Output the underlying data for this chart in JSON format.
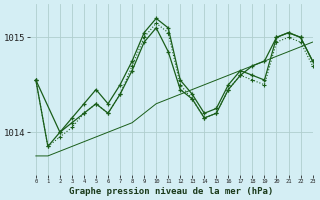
{
  "title": "Graphe pression niveau de la mer (hPa)",
  "background_color": "#d4eef4",
  "grid_color": "#b0cece",
  "line_color": "#1a5e1a",
  "xlim": [
    -0.5,
    23
  ],
  "ylim": [
    1013.55,
    1015.35
  ],
  "yticks": [
    1014,
    1015
  ],
  "xticks": [
    0,
    1,
    2,
    3,
    4,
    5,
    6,
    7,
    8,
    9,
    10,
    11,
    12,
    13,
    14,
    15,
    16,
    17,
    18,
    19,
    20,
    21,
    22,
    23
  ],
  "series": [
    {
      "x": [
        0,
        1,
        2,
        3,
        4,
        5,
        6,
        7,
        8,
        9,
        10,
        11,
        12,
        13,
        14,
        15,
        16,
        17,
        18,
        19,
        20,
        21,
        22,
        23
      ],
      "y": [
        1014.55,
        1013.85,
        1014.0,
        1014.15,
        1014.3,
        1014.45,
        1014.3,
        1014.5,
        1014.75,
        1015.05,
        1015.2,
        1015.1,
        1014.55,
        1014.4,
        1014.2,
        1014.25,
        1014.5,
        1014.65,
        1014.6,
        1014.55,
        1015.0,
        1015.05,
        1015.0,
        1014.75
      ],
      "linestyle": "-",
      "marker": "+"
    },
    {
      "x": [
        0,
        1,
        2,
        3,
        4,
        5,
        6,
        7,
        8,
        9,
        10,
        11,
        12,
        13,
        14,
        15,
        16,
        17,
        18,
        19,
        20,
        21,
        22,
        23
      ],
      "y": [
        1014.55,
        1013.85,
        1013.95,
        1014.05,
        1014.2,
        1014.3,
        1014.2,
        1014.4,
        1014.7,
        1015.0,
        1015.15,
        1015.05,
        1014.5,
        1014.35,
        1014.15,
        1014.2,
        1014.45,
        1014.6,
        1014.55,
        1014.5,
        1014.95,
        1015.0,
        1014.95,
        1014.7
      ],
      "linestyle": ":",
      "marker": "+"
    },
    {
      "x": [
        0,
        2,
        3,
        4,
        5,
        6,
        7,
        8,
        9,
        10,
        11,
        12,
        13,
        14,
        15,
        16,
        17,
        18,
        19,
        20,
        21,
        22,
        23
      ],
      "y": [
        1014.55,
        1014.0,
        1014.1,
        1014.2,
        1014.3,
        1014.2,
        1014.4,
        1014.65,
        1014.95,
        1015.1,
        1014.85,
        1014.45,
        1014.35,
        1014.15,
        1014.2,
        1014.45,
        1014.6,
        1014.7,
        1014.75,
        1015.0,
        1015.05,
        1015.0,
        1014.75
      ],
      "linestyle": "-",
      "marker": "+"
    },
    {
      "x": [
        0,
        1,
        2,
        3,
        4,
        5,
        6,
        7,
        8,
        9,
        10,
        11,
        12,
        13,
        14,
        15,
        16,
        17,
        18,
        19,
        20,
        21,
        22,
        23
      ],
      "y": [
        1013.75,
        1013.75,
        1013.8,
        1013.85,
        1013.9,
        1013.95,
        1014.0,
        1014.05,
        1014.1,
        1014.2,
        1014.3,
        1014.35,
        1014.4,
        1014.45,
        1014.5,
        1014.55,
        1014.6,
        1014.65,
        1014.7,
        1014.75,
        1014.8,
        1014.85,
        1014.9,
        1014.95
      ],
      "linestyle": "-",
      "marker": null
    }
  ]
}
